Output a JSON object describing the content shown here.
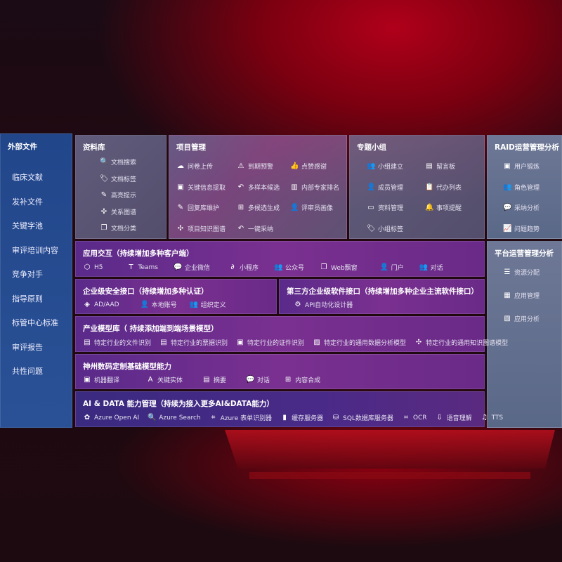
{
  "left": {
    "title": "外部文件",
    "items": [
      "临床文献",
      "发补文件",
      "关键字池",
      "审评培训内容",
      "竞争对手",
      "指导原则",
      "标管中心标准",
      "审评报告",
      "共性问题"
    ]
  },
  "library": {
    "title": "资料库",
    "items": [
      {
        "icon": "document-search-icon",
        "g": "🔍",
        "label": "文档搜索"
      },
      {
        "icon": "tag-icon",
        "g": "🏷",
        "label": "文档标签"
      },
      {
        "icon": "pen-icon",
        "g": "✎",
        "label": "高亮提示"
      },
      {
        "icon": "graph-icon",
        "g": "✣",
        "label": "关系图谱"
      },
      {
        "icon": "documents-icon",
        "g": "❐",
        "label": "文档分类"
      }
    ]
  },
  "project": {
    "title": "项目管理",
    "items": [
      {
        "icon": "cloud-upload-icon",
        "g": "☁",
        "label": "问卷上传"
      },
      {
        "icon": "alarm-icon",
        "g": "⚠",
        "label": "到期预警"
      },
      {
        "icon": "thumbs-up-icon",
        "g": "👍",
        "label": "点赞感谢"
      },
      {
        "icon": "extract-icon",
        "g": "▣",
        "label": "关键信息提取"
      },
      {
        "icon": "reply-icon",
        "g": "↶",
        "label": "多样本候选"
      },
      {
        "icon": "ranking-icon",
        "g": "▥",
        "label": "内部专家排名"
      },
      {
        "icon": "edit-icon",
        "g": "✎",
        "label": "回复库维护"
      },
      {
        "icon": "puzzle-icon",
        "g": "⊞",
        "label": "多候选生成"
      },
      {
        "icon": "person-icon",
        "g": "👤",
        "label": "评审员画像"
      },
      {
        "icon": "graph-icon",
        "g": "✣",
        "label": "项目知识图谱"
      },
      {
        "icon": "reply-icon",
        "g": "↶",
        "label": "一键采纳"
      }
    ]
  },
  "group": {
    "title": "专题小组",
    "items": [
      {
        "icon": "group-icon",
        "g": "👥",
        "label": "小组建立"
      },
      {
        "icon": "bbs-icon",
        "g": "▤",
        "label": "留言板"
      },
      {
        "icon": "add-member-icon",
        "g": "👤",
        "label": "成员管理"
      },
      {
        "icon": "clipboard-icon",
        "g": "📋",
        "label": "代办列表"
      },
      {
        "icon": "folder-icon",
        "g": "▭",
        "label": "资料管理"
      },
      {
        "icon": "bell-icon",
        "g": "🔔",
        "label": "事项提醒"
      },
      {
        "icon": "tag-icon",
        "g": "🏷",
        "label": "小组标签"
      }
    ]
  },
  "raid": {
    "title": "RAID运营管理分析",
    "items": [
      {
        "icon": "id-card-icon",
        "g": "▣",
        "label": "用户锻炼"
      },
      {
        "icon": "users-icon",
        "g": "👥",
        "label": "角色管理"
      },
      {
        "icon": "qa-icon",
        "g": "💬",
        "label": "采纳分析"
      },
      {
        "icon": "trend-icon",
        "g": "📈",
        "label": "问题趋势"
      }
    ]
  },
  "platform": {
    "title": "平台运营管理分析",
    "items": [
      {
        "icon": "list-icon",
        "g": "☰",
        "label": "资源分配"
      },
      {
        "icon": "apps-icon",
        "g": "▦",
        "label": "应用管理"
      },
      {
        "icon": "analysis-icon",
        "g": "▧",
        "label": "应用分析"
      }
    ]
  },
  "app": {
    "title": "应用交互（持续增加多种客户端）",
    "items": [
      {
        "icon": "html5-icon",
        "g": "⬡",
        "label": "H5"
      },
      {
        "icon": "teams-icon",
        "g": "T",
        "label": "Teams"
      },
      {
        "icon": "wechat-icon",
        "g": "💬",
        "label": "企业微信"
      },
      {
        "icon": "miniprogram-icon",
        "g": "∂",
        "label": "小程序"
      },
      {
        "icon": "users-icon",
        "g": "👥",
        "label": "公众号"
      },
      {
        "icon": "window-icon",
        "g": "❐",
        "label": "Web飘窗"
      },
      {
        "icon": "portal-icon",
        "g": "👤",
        "label": "门户"
      },
      {
        "icon": "chat-icon",
        "g": "👥",
        "label": "对话"
      }
    ]
  },
  "security": {
    "title": "企业级安全接口（持续增加多种认证）",
    "items": [
      {
        "icon": "ad-icon",
        "g": "◈",
        "label": "AD/AAD"
      },
      {
        "icon": "local-account-icon",
        "g": "👤",
        "label": "本地账号"
      },
      {
        "icon": "org-icon",
        "g": "👥",
        "label": "组织定义"
      }
    ]
  },
  "thirdparty": {
    "title": "第三方企业级软件接口（持续增加多种企业主流软件接口）",
    "items": [
      {
        "icon": "gear-icon",
        "g": "⚙",
        "label": "API自动化设计器"
      }
    ]
  },
  "industry": {
    "title": "产业模型库（ 持续添加端到端场景模型）",
    "items": [
      {
        "icon": "file-icon",
        "g": "▤",
        "label": "特定行业的文件识别"
      },
      {
        "icon": "receipt-icon",
        "g": "▤",
        "label": "特定行业的票据识别"
      },
      {
        "icon": "id-card-icon",
        "g": "▣",
        "label": "特定行业的证件识别"
      },
      {
        "icon": "chart-icon",
        "g": "▨",
        "label": "特定行业的通用数据分析模型"
      },
      {
        "icon": "graph-icon",
        "g": "✣",
        "label": "特定行业的通用知识图谱模型"
      }
    ]
  },
  "base": {
    "title": "神州数码定制基础模型能力",
    "items": [
      {
        "icon": "translate-icon",
        "g": "▣",
        "label": "机器翻译"
      },
      {
        "icon": "entity-icon",
        "g": "A",
        "label": "关键实体"
      },
      {
        "icon": "summary-icon",
        "g": "▤",
        "label": "摘要"
      },
      {
        "icon": "chat-bubble-icon",
        "g": "💬",
        "label": "对话"
      },
      {
        "icon": "compose-icon",
        "g": "⊞",
        "label": "内容合成"
      }
    ]
  },
  "ai": {
    "title": "AI & DATA 能力管理（持续为接入更多AI&DATA能力）",
    "items": [
      {
        "icon": "openai-icon",
        "g": "✿",
        "label": "Azure Open AI"
      },
      {
        "icon": "search-icon",
        "g": "🔍",
        "label": "Azure Search"
      },
      {
        "icon": "form-recognizer-icon",
        "g": "⌗",
        "label": "Azure 表单识别器"
      },
      {
        "icon": "cache-server-icon",
        "g": "▮",
        "label": "缓存服务器"
      },
      {
        "icon": "sql-icon",
        "g": "⛁",
        "label": "SQL数据库服务器"
      },
      {
        "icon": "ocr-icon",
        "g": "⌗",
        "label": "OCR"
      },
      {
        "icon": "speech-icon",
        "g": "⇩",
        "label": "语音理解"
      },
      {
        "icon": "tts-icon",
        "g": "♫",
        "label": "TTS"
      }
    ]
  }
}
